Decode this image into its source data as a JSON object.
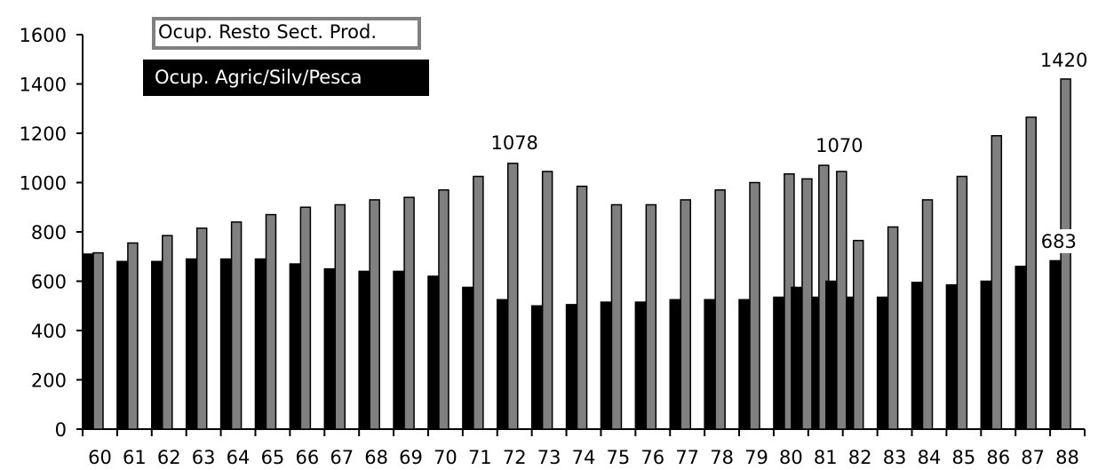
{
  "chart_data": {
    "type": "bar",
    "categories": [
      "60",
      "61",
      "62",
      "63",
      "64",
      "65",
      "66",
      "67",
      "68",
      "69",
      "70",
      "71",
      "72",
      "73",
      "74",
      "75",
      "76",
      "77",
      "78",
      "79",
      "80",
      "81",
      "82",
      "83",
      "84",
      "85",
      "86",
      "87",
      "88"
    ],
    "series": [
      {
        "name": "Ocup. Agric/Silv/Pesca",
        "color": "#000000",
        "values": [
          710,
          680,
          680,
          690,
          690,
          690,
          670,
          650,
          640,
          640,
          620,
          575,
          525,
          500,
          505,
          515,
          515,
          525,
          525,
          525,
          535,
          535,
          535,
          535,
          595,
          585,
          600,
          660,
          683
        ]
      },
      {
        "name": "Ocup. Resto Sect. Prod.",
        "color": "#808080",
        "values": [
          715,
          755,
          785,
          815,
          840,
          870,
          900,
          910,
          930,
          940,
          970,
          1025,
          1078,
          1045,
          985,
          910,
          910,
          930,
          970,
          1000,
          1035,
          1070,
          765,
          820,
          930,
          1025,
          1190,
          1265,
          1420
        ]
      }
    ],
    "extra_bars": [
      {
        "category": "80",
        "series": "Ocup. Agric/Silv/Pesca",
        "value": 575
      },
      {
        "category": "80",
        "series": "Ocup. Resto Sect. Prod.",
        "value": 1015
      },
      {
        "category": "81",
        "series": "Ocup. Agric/Silv/Pesca",
        "value": 600
      },
      {
        "category": "81",
        "series": "Ocup. Resto Sect. Prod.",
        "value": 1045
      }
    ],
    "ylim": [
      0,
      1600
    ],
    "yticks": [
      "0",
      "200",
      "400",
      "600",
      "800",
      "1000",
      "1200",
      "1400",
      "1600"
    ],
    "data_labels": [
      {
        "category": "72",
        "text": "1078"
      },
      {
        "category": "81",
        "text": "1070"
      },
      {
        "category": "88",
        "text": "1420"
      },
      {
        "category": "88",
        "text": "683"
      }
    ],
    "legend": {
      "placement": "top-left",
      "items": [
        "Ocup. Resto Sect. Prod.",
        "Ocup. Agric/Silv/Pesca"
      ]
    },
    "grid": false
  }
}
